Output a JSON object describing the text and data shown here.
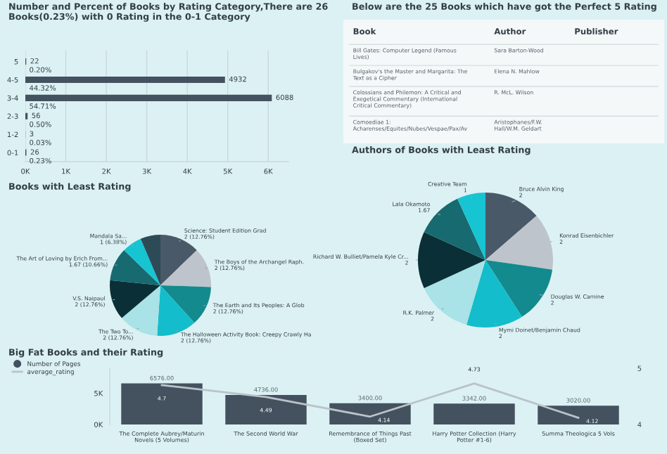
{
  "chart_data": [
    {
      "type": "bar",
      "orientation": "horizontal",
      "title": "Number and Percent of Books by Rating Category,There are 26\nBooks(0.23%) with 0 Rating in the 0-1 Category",
      "categories": [
        "5",
        "4-5",
        "3-4",
        "2-3",
        "1-2",
        "0-1"
      ],
      "values": [
        22,
        4932,
        6088,
        56,
        3,
        26
      ],
      "color": "#44525f",
      "data_labels": true,
      "xlim": [
        0,
        6500
      ],
      "xticks": [
        {
          "value": 0,
          "label": "0K"
        },
        {
          "value": 1000,
          "label": "1K"
        },
        {
          "value": 2000,
          "label": "2K"
        },
        {
          "value": 3000,
          "label": "3K"
        },
        {
          "value": 4000,
          "label": "4K"
        },
        {
          "value": 5000,
          "label": "5K"
        },
        {
          "value": 6000,
          "label": "6K"
        }
      ],
      "grid": "x",
      "annotations": [
        "0.20%",
        "44.32%",
        "54.71%",
        "0.50%",
        "0.03%",
        "0.23%"
      ]
    },
    {
      "type": "other",
      "title": "Below are the 25 Books which have got the Perfect 5 Rating",
      "categories": [
        "Book",
        "Author",
        "Publisher"
      ],
      "y_categories": [
        "Bill Gates: Computer Legend (Famous\nLives)",
        "Bulgakov's the Master and Margarita: The\nText as a Cipher",
        "Colossians and Philemon: A Critical and\nExegetical Commentary (International\nCritical Commentary)",
        "Comoediae 1:\nAcharenses/Equites/Nubes/Vespae/Pax/Av"
      ],
      "y2_categories": [
        "Sara Barton-Wood",
        "Elena N. Mahlow",
        "R. McL. Wilson",
        "Aristophanes/F.W.\nHall/W.M. Geldart"
      ]
    },
    {
      "type": "pie",
      "title": "Books with Least Rating",
      "categories": [
        "Science: Student Edition Grad",
        "The Boys of the Archangel Raph.",
        "The Earth and Its Peoples: A Glob",
        "The Halloween Activity Book: Creepy Crawly Ha",
        "The Two To...",
        "V.S. Naipaul",
        "The Art of Loving by Erich From...",
        "Mandala Sa...",
        null
      ],
      "values": [
        2,
        2,
        2,
        2,
        2,
        2,
        1.67,
        1,
        1
      ],
      "value_labels": [
        "2 (12.76%)",
        "2 (12.76%)",
        "2 (12.76%)",
        "2 (12.76%)",
        "2 (12.76%)",
        "2 (12.76%)",
        "1.67 (10.66%)",
        "1 (6.38%)",
        null
      ],
      "colors": [
        "#4a5968",
        "#bec4cb",
        "#138a8e",
        "#14bdcb",
        "#a9e2e7",
        "#0b2f36",
        "#176a70",
        "#17c4d2",
        "#2c4b57"
      ]
    },
    {
      "type": "pie",
      "title": "Authors of Books with Least Rating",
      "categories": [
        "Bruce Alvin King",
        "Konrad Eisenbichler",
        "Douglas W. Carnine",
        "Mymi Doinet/Benjamin Chaud",
        "R.K. Palmer",
        "Richard W. Bulliet/Pamela Kyle Cr...",
        "Lala Okamoto",
        "Creative Team"
      ],
      "values": [
        2,
        2,
        2,
        2,
        2,
        2,
        1.67,
        1
      ],
      "data_labels": true,
      "colors": [
        "#4a5968",
        "#bec4cb",
        "#138a8e",
        "#14bdcb",
        "#a9e2e7",
        "#0b2f36",
        "#176a70",
        "#17c4d2"
      ]
    },
    {
      "type": "bar",
      "title": "Big Fat Books and their Rating",
      "categories": [
        "The Complete Aubrey/Maturin\nNovels (5 Volumes)",
        "The Second World War",
        "Remembrance of Things Past\n(Boxed Set)",
        "Harry Potter Collection (Harry\nPotter #1-6)",
        "Summa Theologica 5 Vols"
      ],
      "series": [
        {
          "name": "Number of Pages",
          "type": "bar",
          "color": "#44525f",
          "values": [
            6576,
            4736,
            3400,
            3342,
            3020
          ],
          "value_labels": [
            "6576.00",
            "4736.00",
            "3400.00",
            "3342.00",
            "3020.00"
          ]
        },
        {
          "name": "average_rating",
          "type": "line",
          "axis": "y2",
          "color": "#b9c3c9",
          "values": [
            4.7,
            4.49,
            4.14,
            4.73,
            4.12
          ],
          "value_labels": [
            "4.7",
            "4.49",
            "4.14",
            "4.73",
            "4.12"
          ]
        }
      ],
      "ylim": [
        0,
        9000
      ],
      "yticks": [
        {
          "value": 0,
          "label": "0K"
        },
        {
          "value": 5000,
          "label": "5K"
        }
      ],
      "y2lim": [
        4,
        5
      ],
      "y2ticks": [
        4,
        5
      ],
      "legend": "top left"
    }
  ]
}
